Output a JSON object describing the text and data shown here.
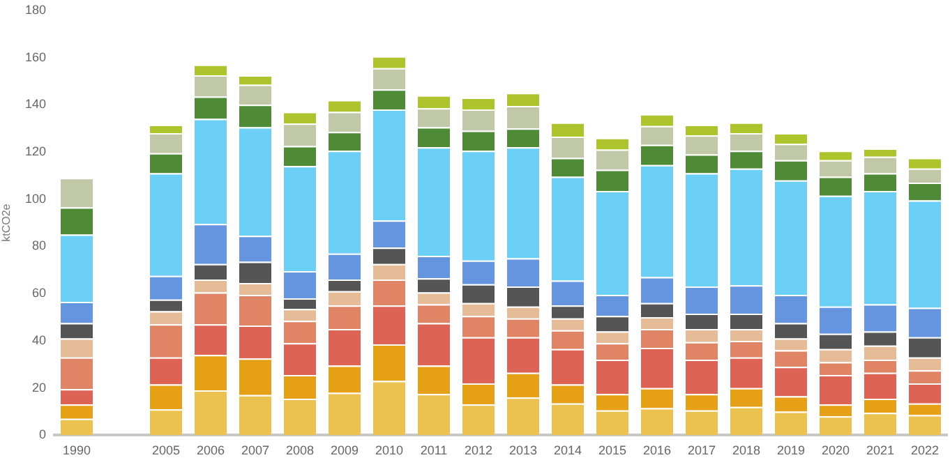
{
  "chart_data": {
    "type": "bar",
    "stacked": true,
    "ylabel": "ktCO2e",
    "categories": [
      "1990",
      null,
      "2005",
      "2006",
      "2007",
      "2008",
      "2009",
      "2010",
      "2011",
      "2012",
      "2013",
      "2014",
      "2015",
      "2016",
      "2017",
      "2018",
      "2019",
      "2020",
      "2021",
      "2022"
    ],
    "ylim": [
      0,
      180
    ],
    "yticks": [
      0,
      20,
      40,
      60,
      80,
      100,
      120,
      140,
      160,
      180
    ],
    "grid": false,
    "legend": false,
    "series": [
      {
        "color": "#ebc24f",
        "values": [
          7,
          null,
          11,
          19,
          17,
          15.5,
          18,
          23,
          17.5,
          13,
          16,
          13.5,
          10.5,
          11.5,
          10.5,
          12,
          10,
          8,
          9.5,
          8.5
        ]
      },
      {
        "color": "#e5a018",
        "values": [
          6,
          null,
          10.5,
          15,
          15.5,
          10,
          11.5,
          15.5,
          12,
          9,
          10.5,
          8,
          7,
          8.5,
          7,
          8,
          6.5,
          5,
          6,
          5
        ]
      },
      {
        "color": "#dd6354",
        "values": [
          6.5,
          null,
          11.5,
          13,
          14,
          13.5,
          15.5,
          16.5,
          18,
          19.5,
          15,
          15,
          14.5,
          17,
          14.5,
          13,
          12.5,
          12.5,
          11,
          8.5
        ]
      },
      {
        "color": "#e08466",
        "values": [
          13.5,
          null,
          14,
          13.5,
          13,
          9.5,
          10,
          11,
          8,
          9,
          8,
          8,
          7,
          8,
          7.5,
          7,
          7,
          5.5,
          5.5,
          5.5
        ]
      },
      {
        "color": "#e6bc98",
        "values": [
          8,
          null,
          5.5,
          5.5,
          5,
          5,
          6,
          6.5,
          5,
          5.5,
          5,
          5,
          5,
          5,
          5.5,
          5,
          5,
          5.5,
          6,
          5.5
        ]
      },
      {
        "color": "#555555",
        "values": [
          6.5,
          null,
          5,
          6.5,
          9,
          4.5,
          5,
          7,
          6,
          8,
          8.5,
          5.5,
          6.5,
          6,
          6.5,
          6.5,
          6.5,
          6.5,
          6,
          8.5
        ]
      },
      {
        "color": "#6595de",
        "values": [
          9,
          null,
          10,
          17,
          11,
          11.5,
          11,
          11.5,
          9.5,
          10,
          12,
          10.5,
          9,
          11,
          11.5,
          12,
          12,
          11.5,
          11.5,
          12.5
        ]
      },
      {
        "color": "#6ccff6",
        "values": [
          28.5,
          null,
          43.5,
          44.5,
          46,
          44.5,
          43.5,
          47,
          46,
          46.5,
          47,
          44,
          44,
          47.5,
          48,
          49.5,
          48.5,
          47,
          48,
          45.5
        ]
      },
      {
        "color": "#4f8a37",
        "values": [
          11.5,
          null,
          8.5,
          9.5,
          9.5,
          8.5,
          8,
          8.5,
          8.5,
          8.5,
          8,
          8,
          9,
          8.5,
          8,
          7.5,
          8.5,
          8,
          7.5,
          7.5
        ]
      },
      {
        "color": "#c0c8a8",
        "values": [
          12.5,
          null,
          8.5,
          9,
          8.5,
          9.5,
          8.5,
          9,
          8,
          9,
          9.5,
          9,
          8.5,
          8,
          8,
          7.5,
          7,
          7,
          7,
          6
        ]
      },
      {
        "color": "#aec42d",
        "values": [
          null,
          null,
          3.5,
          4.5,
          4,
          5,
          5,
          5,
          5.5,
          5,
          5.5,
          6,
          5,
          5,
          4.5,
          4.5,
          4.5,
          4,
          3.5,
          4.5
        ]
      }
    ]
  }
}
